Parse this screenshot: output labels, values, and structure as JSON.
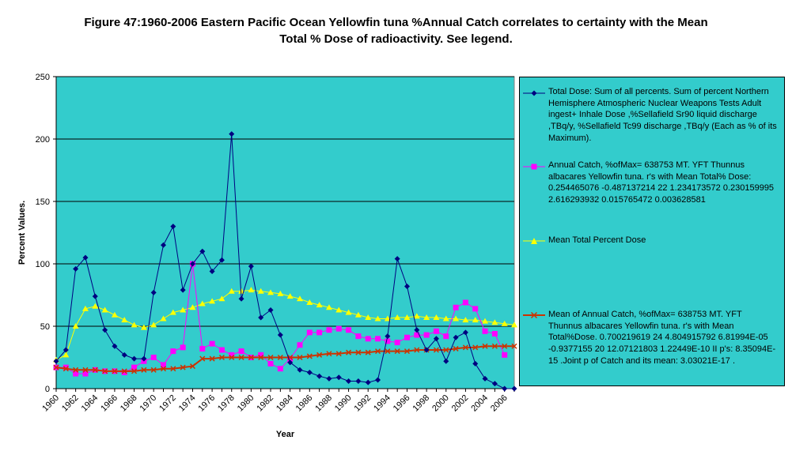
{
  "chart_data": {
    "type": "line",
    "title_line1": "Figure 47:1960-2006 Eastern Pacific Ocean Yellowfin tuna %Annual Catch correlates to certainty with the Mean",
    "title_line2": "Total % Dose of radioactivity. See legend.",
    "xlabel": "Year",
    "ylabel": "Percent Values.",
    "ylim": [
      0,
      250
    ],
    "yticks": [
      "0",
      "50",
      "100",
      "150",
      "200",
      "250"
    ],
    "xlim": [
      1960,
      2007
    ],
    "xticks": [
      "1960",
      "1962",
      "1964",
      "1966",
      "1968",
      "1970",
      "1972",
      "1974",
      "1976",
      "1978",
      "1980",
      "1982",
      "1984",
      "1986",
      "1988",
      "1990",
      "1992",
      "1994",
      "1996",
      "1998",
      "2000",
      "2002",
      "2004",
      "2006"
    ],
    "plot_background": "#33cccc",
    "series": [
      {
        "name": "Total Dose: Sum of all percents. Sum of percent Northern Hemisphere Atmospheric Nuclear Weapons Tests Adult ingest+ Inhale Dose ,%Sellafield Sr90 liquid discharge ,TBq/y, %Sellafield Tc99 discharge ,TBq/y (Each as % of its Maximum).",
        "color": "#000080",
        "marker": "diamond",
        "x": [
          1960,
          1961,
          1962,
          1963,
          1964,
          1965,
          1966,
          1967,
          1968,
          1969,
          1970,
          1971,
          1972,
          1973,
          1974,
          1975,
          1976,
          1977,
          1978,
          1979,
          1980,
          1981,
          1982,
          1983,
          1984,
          1985,
          1986,
          1987,
          1988,
          1989,
          1990,
          1991,
          1992,
          1993,
          1994,
          1995,
          1996,
          1997,
          1998,
          1999,
          2000,
          2001,
          2002,
          2003,
          2004,
          2005,
          2006,
          2007
        ],
        "values": [
          22,
          31,
          96,
          105,
          74,
          47,
          34,
          27,
          24,
          24,
          77,
          115,
          130,
          79,
          100,
          110,
          94,
          103,
          204,
          72,
          98,
          57,
          63,
          43,
          21,
          15,
          13,
          10,
          8,
          9,
          6,
          6,
          5,
          7,
          42,
          104,
          82,
          47,
          31,
          40,
          22,
          41,
          45,
          20,
          8,
          4,
          0,
          0
        ]
      },
      {
        "name": "Annual Catch, %ofMax= 638753 MT. YFT Thunnus albacares Yellowfin tuna. r's with Mean Total% Dose: 0.254465076 -0.487137214 22 1.234173572 0.230159995 2.616293932 0.015765472 0.003628581",
        "color": "#ff00ff",
        "marker": "square",
        "x": [
          1960,
          1961,
          1962,
          1963,
          1964,
          1965,
          1966,
          1967,
          1968,
          1969,
          1970,
          1971,
          1972,
          1973,
          1974,
          1975,
          1976,
          1977,
          1978,
          1979,
          1980,
          1981,
          1982,
          1983,
          1984,
          1985,
          1986,
          1987,
          1988,
          1989,
          1990,
          1991,
          1992,
          1993,
          1994,
          1995,
          1996,
          1997,
          1998,
          1999,
          2000,
          2001,
          2002,
          2003,
          2004,
          2005,
          2006
        ],
        "values": [
          17,
          17,
          12,
          12,
          15,
          14,
          14,
          13,
          17,
          22,
          25,
          19,
          30,
          33,
          100,
          32,
          36,
          31,
          27,
          30,
          25,
          27,
          20,
          16,
          24,
          35,
          45,
          45,
          47,
          48,
          47,
          42,
          40,
          40,
          38,
          37,
          41,
          43,
          43,
          46,
          42,
          65,
          69,
          64,
          46,
          44,
          27
        ]
      },
      {
        "name": "Mean Total Percent Dose",
        "color": "#ffff00",
        "marker": "triangle",
        "x": [
          1960,
          1961,
          1962,
          1963,
          1964,
          1965,
          1966,
          1967,
          1968,
          1969,
          1970,
          1971,
          1972,
          1973,
          1974,
          1975,
          1976,
          1977,
          1978,
          1979,
          1980,
          1981,
          1982,
          1983,
          1984,
          1985,
          1986,
          1987,
          1988,
          1989,
          1990,
          1991,
          1992,
          1993,
          1994,
          1995,
          1996,
          1997,
          1998,
          1999,
          2000,
          2001,
          2002,
          2003,
          2004,
          2005,
          2006,
          2007
        ],
        "values": [
          23,
          27,
          50,
          64,
          66,
          63,
          59,
          55,
          51,
          49,
          51,
          56,
          61,
          63,
          65,
          68,
          70,
          72,
          78,
          78,
          79,
          78,
          77,
          76,
          74,
          72,
          69,
          67,
          65,
          63,
          61,
          59,
          57,
          56,
          56,
          57,
          57,
          58,
          57,
          57,
          56,
          56,
          55,
          55,
          54,
          53,
          52,
          51
        ]
      },
      {
        "name": "Mean of Annual Catch, %ofMax= 638753 MT. YFT Thunnus albacares Yellowfin tuna. r's with Mean Total%Dose. 0.700219619 24 4.804915792 6.81994E-05 -0.9377155 20 12.07121803 1.22449E-10 II p's: 8.35094E-15 .Joint p of Catch and its mean: 3.03021E-17 .",
        "color": "#cc3300",
        "marker": "cross",
        "x": [
          1960,
          1961,
          1962,
          1963,
          1964,
          1965,
          1966,
          1967,
          1968,
          1969,
          1970,
          1971,
          1972,
          1973,
          1974,
          1975,
          1976,
          1977,
          1978,
          1979,
          1980,
          1981,
          1982,
          1983,
          1984,
          1985,
          1986,
          1987,
          1988,
          1989,
          1990,
          1991,
          1992,
          1993,
          1994,
          1995,
          1996,
          1997,
          1998,
          1999,
          2000,
          2001,
          2002,
          2003,
          2004,
          2005,
          2006,
          2007
        ],
        "values": [
          17,
          16,
          15,
          15,
          15,
          14,
          14,
          14,
          14,
          15,
          15,
          16,
          16,
          17,
          18,
          24,
          24,
          25,
          25,
          25,
          25,
          25,
          25,
          25,
          25,
          25,
          26,
          27,
          28,
          28,
          29,
          29,
          29,
          30,
          30,
          30,
          30,
          31,
          31,
          31,
          31,
          32,
          33,
          33,
          34,
          34,
          34,
          34
        ]
      }
    ]
  }
}
